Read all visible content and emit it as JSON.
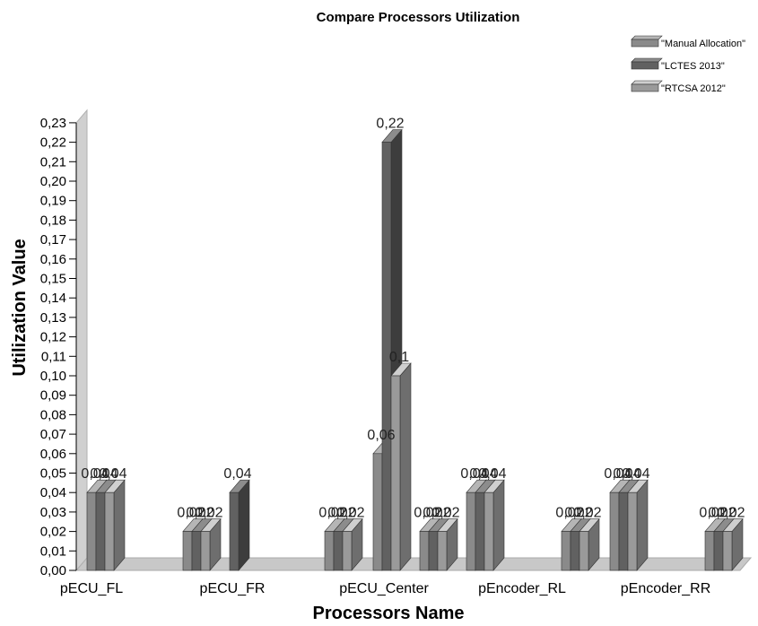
{
  "chart_data": {
    "type": "bar",
    "title": "Compare Processors Utilization",
    "xlabel": "Processors Name",
    "ylabel": "Utilization Value",
    "categories": [
      "pECU_FL",
      "pECU_FR",
      "pECU_Center",
      "pEncoder_RL",
      "pEncoder_RR"
    ],
    "groups": [
      {
        "category": "pECU_FL",
        "series": [
          "Manual Allocation",
          "LCTES 2013",
          "RTCSA 2012"
        ],
        "values": [
          0.04,
          0.04,
          0.04
        ],
        "labels": [
          "0,04",
          "0,04",
          "0,04"
        ]
      },
      {
        "category": "pECU_FL|pECU_FR",
        "series": [
          "Manual Allocation",
          "LCTES 2013",
          "RTCSA 2012"
        ],
        "values": [
          0.02,
          0.02,
          0.02
        ],
        "labels": [
          "0,02",
          "0,02",
          "0,02"
        ]
      },
      {
        "category": "pECU_FR",
        "series": [
          "LCTES 2013"
        ],
        "values": [
          0.04
        ],
        "labels": [
          "0,04"
        ]
      },
      {
        "category": "pECU_FR|pECU_Center",
        "series": [
          "Manual Allocation",
          "LCTES 2013",
          "RTCSA 2012"
        ],
        "values": [
          0.02,
          0.02,
          0.02
        ],
        "labels": [
          "0,02",
          "0,02",
          "0,02"
        ]
      },
      {
        "category": "pECU_Center",
        "series": [
          "Manual Allocation",
          "LCTES 2013",
          "RTCSA 2012"
        ],
        "values": [
          0.06,
          0.22,
          0.1
        ],
        "labels": [
          "0,06",
          "0,22",
          "0,1"
        ]
      },
      {
        "category": "pECU_Center|pEncoder_RL",
        "series": [
          "Manual Allocation",
          "LCTES 2013",
          "RTCSA 2012"
        ],
        "values": [
          0.02,
          0.02,
          0.02
        ],
        "labels": [
          "0,02",
          "0,02",
          "0,02"
        ]
      },
      {
        "category": "pEncoder_RL",
        "series": [
          "Manual Allocation",
          "LCTES 2013",
          "RTCSA 2012"
        ],
        "values": [
          0.04,
          0.04,
          0.04
        ],
        "labels": [
          "0,04",
          "0,04",
          "0,04"
        ]
      },
      {
        "category": "pEncoder_RL|pEncoder_RR",
        "series": [
          "Manual Allocation",
          "LCTES 2013",
          "RTCSA 2012"
        ],
        "values": [
          0.02,
          0.02,
          0.02
        ],
        "labels": [
          "0,02",
          "0,02",
          "0,02"
        ]
      },
      {
        "category": "pEncoder_RL|pEncoder_RR",
        "series": [
          "Manual Allocation",
          "LCTES 2013",
          "RTCSA 2012"
        ],
        "values": [
          0.04,
          0.04,
          0.04
        ],
        "labels": [
          "0,04",
          "0,04",
          "0,04"
        ]
      },
      {
        "category": "pEncoder_RR",
        "series": [
          "Manual Allocation",
          "LCTES 2013",
          "RTCSA 2012"
        ],
        "values": [
          0.02,
          0.02,
          0.02
        ],
        "labels": [
          "0,02",
          "0,02",
          "0,02"
        ]
      }
    ],
    "series": [
      {
        "name": "\"Manual Allocation\"",
        "color": "#7f7f7f"
      },
      {
        "name": "\"LCTES 2013\"",
        "color": "#595959"
      },
      {
        "name": "\"RTCSA 2012\"",
        "color": "#a6a6a6"
      }
    ],
    "ylim": [
      0,
      0.23
    ],
    "ytick_step": 0.01,
    "yticks": [
      "0,00",
      "0,01",
      "0,02",
      "0,03",
      "0,04",
      "0,05",
      "0,06",
      "0,07",
      "0,08",
      "0,09",
      "0,10",
      "0,11",
      "0,12",
      "0,13",
      "0,14",
      "0,15",
      "0,16",
      "0,17",
      "0,18",
      "0,19",
      "0,20",
      "0,21",
      "0,22",
      "0,23"
    ],
    "legend_position": "top-right",
    "grid": false,
    "style": "3d"
  }
}
